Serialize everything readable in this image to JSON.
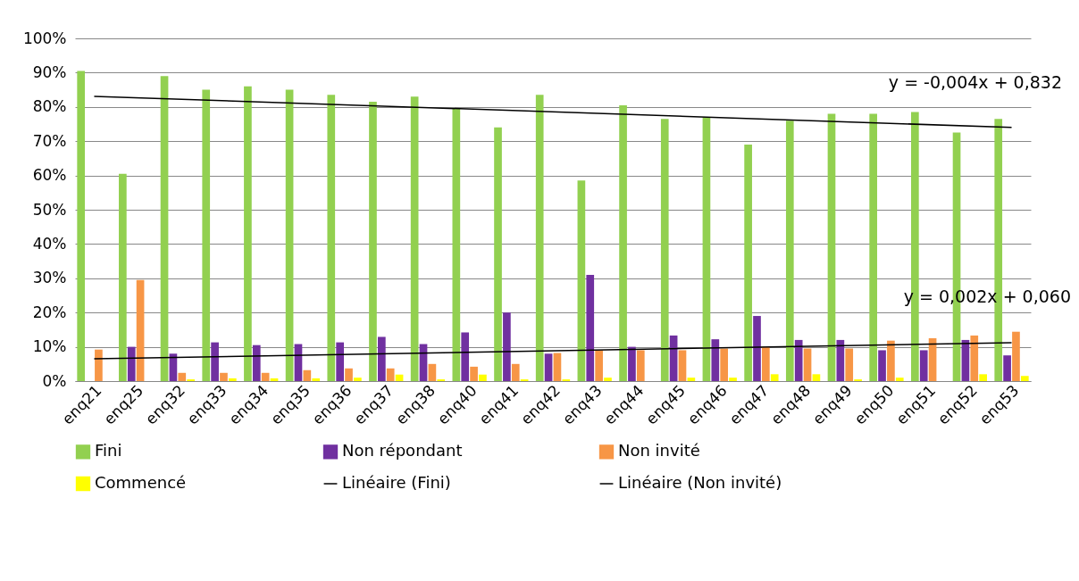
{
  "chart_data": {
    "type": "bar",
    "categories": [
      "enq21",
      "enq25",
      "enq32",
      "enq33",
      "enq34",
      "enq35",
      "enq36",
      "enq37",
      "enq38",
      "enq40",
      "enq41",
      "enq42",
      "enq43",
      "enq44",
      "enq45",
      "enq46",
      "enq47",
      "enq48",
      "enq49",
      "enq50",
      "enq51",
      "enq52",
      "enq53"
    ],
    "series": [
      {
        "name": "Fini",
        "color": "#92d050",
        "values": [
          90.5,
          60.5,
          89,
          85,
          86,
          85,
          83.5,
          81.5,
          83,
          79.5,
          74,
          83.5,
          58.5,
          80.5,
          76.5,
          77,
          69,
          76,
          78,
          78,
          78.5,
          72.5,
          76.5
        ]
      },
      {
        "name": "Non répondant",
        "color": "#7030a0",
        "values": [
          0,
          10,
          8,
          11.3,
          10.5,
          10.8,
          11.3,
          12.9,
          10.8,
          14.2,
          20,
          8,
          31,
          10,
          13.3,
          12.2,
          19,
          12,
          12,
          9,
          9,
          12,
          7.5
        ]
      },
      {
        "name": "Non invité",
        "color": "#f79646",
        "values": [
          9.2,
          29.5,
          2.4,
          2.4,
          2.4,
          3.2,
          3.7,
          3.7,
          5,
          4.2,
          5,
          8.2,
          9,
          9,
          9,
          9.5,
          10,
          9.5,
          9.5,
          11.8,
          12.5,
          13.3,
          14.4
        ]
      },
      {
        "name": "Commencé",
        "color": "#ffff00",
        "values": [
          0,
          0,
          0.5,
          0.8,
          0.8,
          0.8,
          1,
          1.9,
          0.5,
          1.9,
          0.5,
          0.5,
          1,
          0,
          1,
          1,
          2,
          2,
          0.5,
          1,
          0,
          2,
          1.5
        ]
      },
      {
        "name": "Linéaire (Fini)",
        "type": "line",
        "color": "#000000",
        "x": [
          "enq21",
          "enq53"
        ],
        "values": [
          83.1,
          74.0
        ]
      },
      {
        "name": "Linéaire (Non invité)",
        "type": "line",
        "color": "#000000",
        "x": [
          "enq21",
          "enq53"
        ],
        "values": [
          6.5,
          11.2
        ]
      }
    ],
    "ylim": [
      0,
      100
    ],
    "yticks": [
      {
        "value": 0,
        "label": "0%"
      },
      {
        "value": 10,
        "label": "10%"
      },
      {
        "value": 20,
        "label": "20%"
      },
      {
        "value": 30,
        "label": "30%"
      },
      {
        "value": 40,
        "label": "40%"
      },
      {
        "value": 50,
        "label": "50%"
      },
      {
        "value": 60,
        "label": "60%"
      },
      {
        "value": 70,
        "label": "70%"
      },
      {
        "value": 80,
        "label": "80%"
      },
      {
        "value": 90,
        "label": "90%"
      },
      {
        "value": 100,
        "label": "100%"
      }
    ],
    "grid": "y",
    "legend": "bottom",
    "annotations": [
      "y = -0,004x + 0,832",
      "y = 0,002x + 0,060"
    ]
  }
}
